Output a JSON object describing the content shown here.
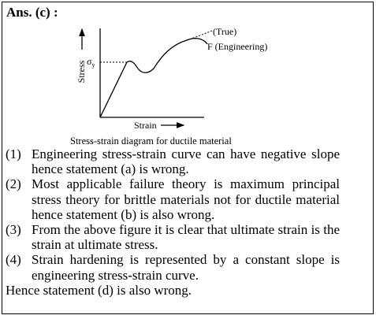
{
  "header": {
    "title": "Ans. (c) :"
  },
  "diagram": {
    "y_label": "Stress",
    "x_label": "Strain",
    "yield_symbol": "σ",
    "yield_subscript": "y",
    "true_label": "(True)",
    "engineering_label": "F (Engineering)",
    "caption": "Stress-strain diagram for ductile material"
  },
  "items": [
    {
      "number": "(1)",
      "text": "Engineering stress-strain curve can have negative slope hence statement (a) is wrong."
    },
    {
      "number": "(2)",
      "text": "Most applicable failure theory is maximum principal stress theory for brittle materials not for ductile material hence statement (b) is also wrong."
    },
    {
      "number": "(3)",
      "text": "From the above figure it is clear that ultimate strain is the strain at ultimate stress."
    },
    {
      "number": "(4)",
      "text": "Strain hardening is represented by a constant slope is engineering stress-strain curve."
    }
  ],
  "conclusion": "Hence statement (d) is also wrong."
}
